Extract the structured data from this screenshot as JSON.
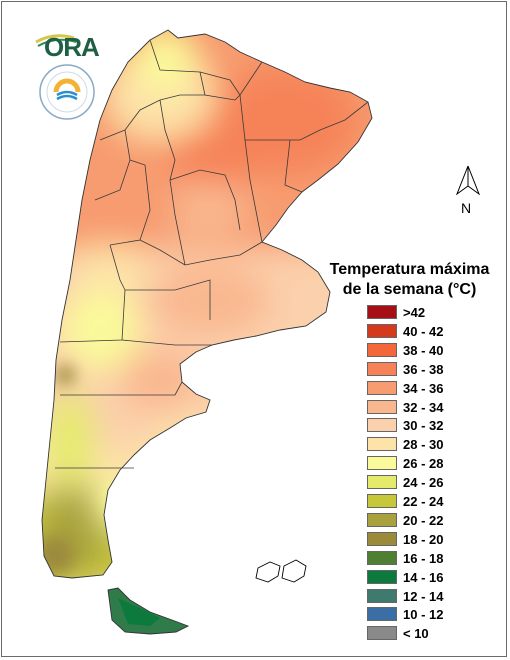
{
  "logos": {
    "ora_text": "ORA",
    "smn_icon": "smn-argentina-seal"
  },
  "north_arrow": {
    "label": "N"
  },
  "legend": {
    "title_line1": "Temperatura máxima",
    "title_line2": "de la semana (°C)",
    "items": [
      {
        "label": ">42",
        "color": "#a50f15"
      },
      {
        "label": "40 - 42",
        "color": "#d63a1e"
      },
      {
        "label": "38 - 40",
        "color": "#f4673a"
      },
      {
        "label": "36 - 38",
        "color": "#f68358"
      },
      {
        "label": "34 - 36",
        "color": "#f79b70"
      },
      {
        "label": "32 - 34",
        "color": "#f9b78f"
      },
      {
        "label": "30 - 32",
        "color": "#fbd0ac"
      },
      {
        "label": "28 - 30",
        "color": "#fde3a8"
      },
      {
        "label": "26 - 28",
        "color": "#fafa9a"
      },
      {
        "label": "24 - 26",
        "color": "#e4ea6a"
      },
      {
        "label": "22 - 24",
        "color": "#c7c73a"
      },
      {
        "label": "20 - 22",
        "color": "#a9a23c"
      },
      {
        "label": "18 - 20",
        "color": "#9b8a3c"
      },
      {
        "label": "16 - 18",
        "color": "#4f7f32"
      },
      {
        "label": "14 - 16",
        "color": "#0c7a3c"
      },
      {
        "label": "12 - 14",
        "color": "#3f7a6e"
      },
      {
        "label": "10 - 12",
        "color": "#3a6ea5"
      },
      {
        "label": "< 10",
        "color": "#8a8a8a"
      }
    ]
  }
}
